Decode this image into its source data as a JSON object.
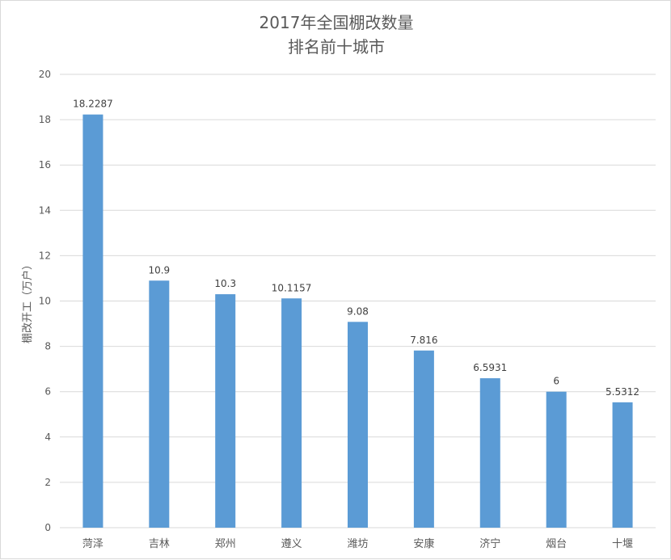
{
  "chart_data": {
    "type": "bar",
    "title": [
      "2017年全国棚改数量",
      "排名前十城市"
    ],
    "ylabel": "棚改开工（万户）",
    "xlabel": "",
    "categories": [
      "菏泽",
      "吉林",
      "郑州",
      "遵义",
      "潍坊",
      "安康",
      "济宁",
      "烟台",
      "十堰"
    ],
    "values": [
      18.2287,
      10.9,
      10.3,
      10.1157,
      9.08,
      7.816,
      6.5931,
      6,
      5.5312
    ],
    "value_labels": [
      "18.2287",
      "10.9",
      "10.3",
      "10.1157",
      "9.08",
      "7.816",
      "6.5931",
      "6",
      "5.5312"
    ],
    "ylim": [
      0,
      20
    ],
    "yticks": [
      "0",
      "2",
      "4",
      "6",
      "8",
      "10",
      "12",
      "14",
      "16",
      "18",
      "20"
    ],
    "grid": true,
    "legend": "none",
    "bar_color": "#5B9BD5",
    "grid_color": "#d9d9d9"
  }
}
